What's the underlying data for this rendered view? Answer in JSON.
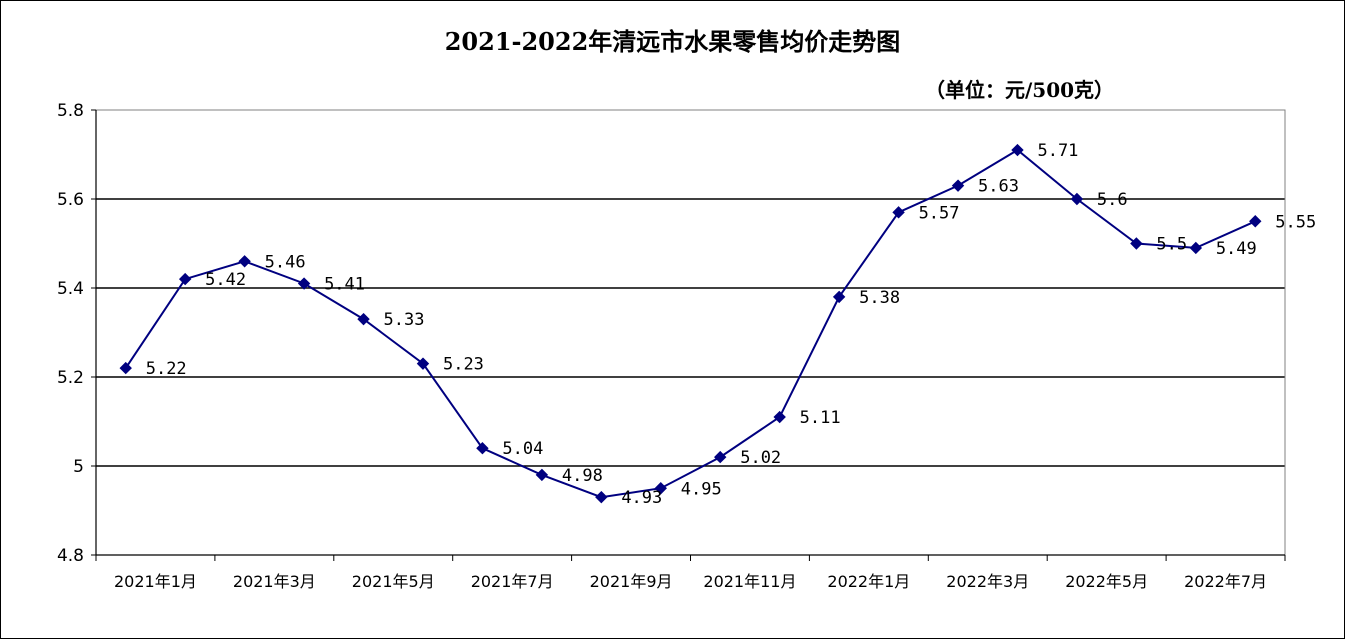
{
  "chart_data": {
    "type": "line",
    "title": "2021-2022年清远市水果零售均价走势图",
    "unit": "（单位：元/500克）",
    "xlabel": "",
    "ylabel": "",
    "ylim": [
      4.8,
      5.8
    ],
    "yticks": [
      4.8,
      5.0,
      5.2,
      5.4,
      5.6,
      5.8
    ],
    "ytick_labels": [
      "4.8",
      "5",
      "5.2",
      "5.4",
      "5.6",
      "5.8"
    ],
    "grid": true,
    "x_tick_labels": [
      "2021年1月",
      "2021年3月",
      "2021年5月",
      "2021年7月",
      "2021年9月",
      "2021年11月",
      "2022年1月",
      "2022年3月",
      "2022年5月",
      "2022年7月"
    ],
    "series": [
      {
        "values": [
          5.22,
          5.42,
          5.46,
          5.41,
          5.33,
          5.23,
          5.04,
          4.98,
          4.93,
          4.95,
          5.02,
          5.11,
          5.38,
          5.57,
          5.63,
          5.71,
          5.6,
          5.5,
          5.49,
          5.55
        ],
        "labels": [
          "5.22",
          "5.42",
          "5.46",
          "5.41",
          "5.33",
          "5.23",
          "5.04",
          "4.98",
          "4.93",
          "4.95",
          "5.02",
          "5.11",
          "5.38",
          "5.57",
          "5.63",
          "5.71",
          "5.6",
          "5.5",
          "5.49",
          "5.55"
        ],
        "color": "#000080"
      }
    ]
  }
}
